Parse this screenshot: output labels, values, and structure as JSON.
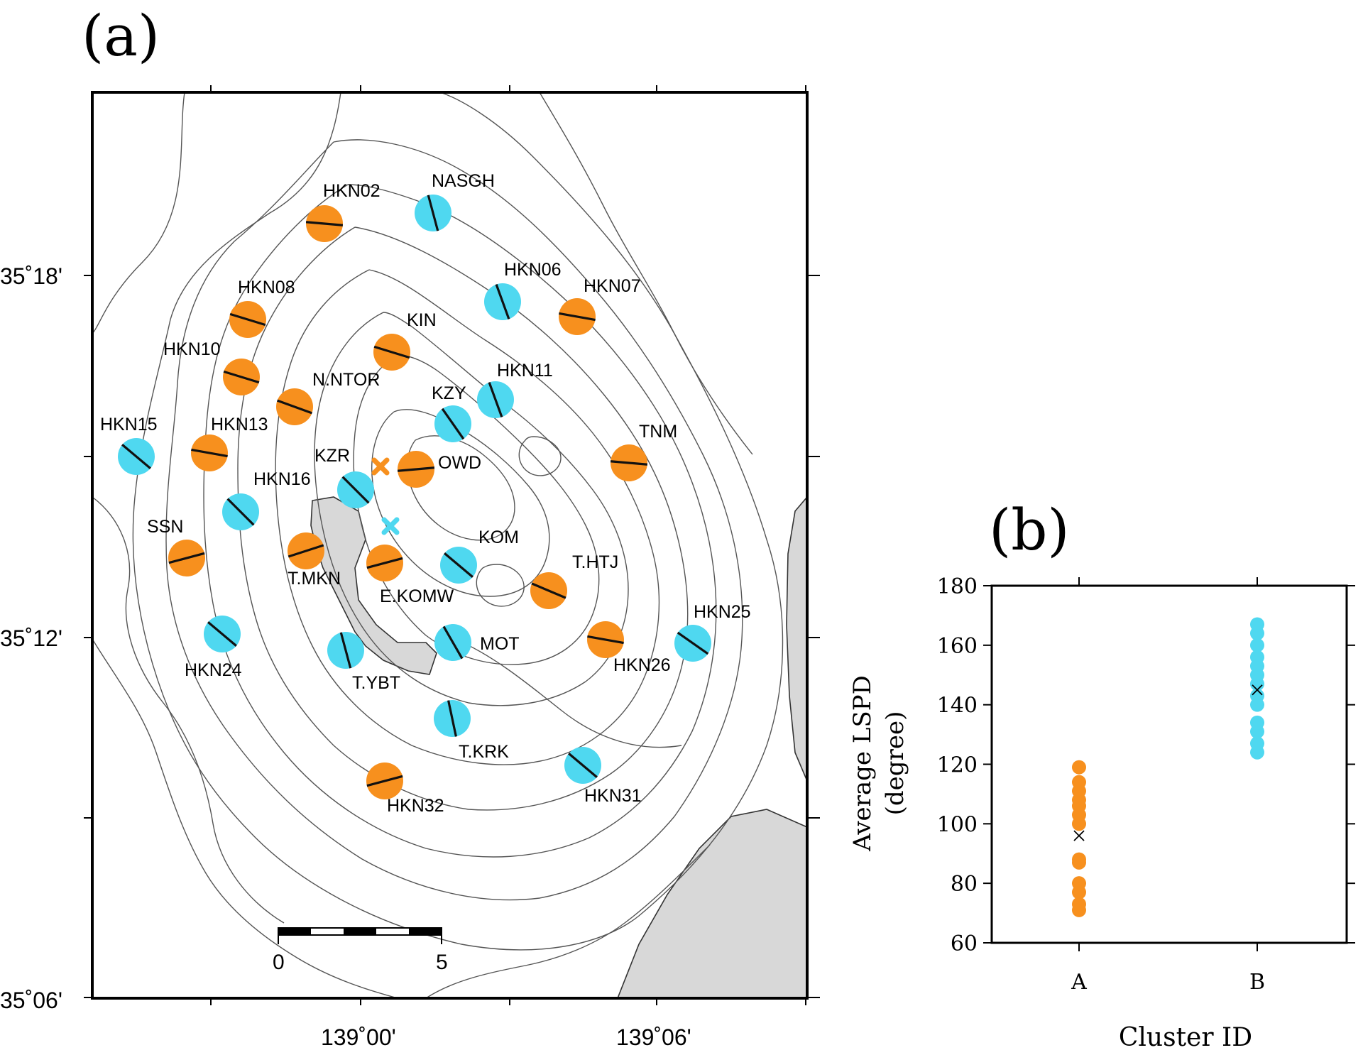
{
  "panel_a": {
    "label": "(a)",
    "lat_labels": [
      "35˚18'",
      "35˚12'",
      "35˚06'"
    ],
    "lon_labels": [
      "139˚00'",
      "139˚06'"
    ],
    "scale_bar": {
      "left": "0",
      "right": "5"
    },
    "colors": {
      "cluster_A": "#F7901E",
      "cluster_B": "#4FD8F0",
      "sea": "#d8d8d8"
    },
    "markers": [
      "orange-cross",
      "cyan-cross"
    ],
    "stations": [
      {
        "name": "HKN02",
        "cluster": "A",
        "lspd": 95
      },
      {
        "name": "NASGH",
        "cluster": "B",
        "lspd": 165
      },
      {
        "name": "HKN08",
        "cluster": "A",
        "lspd": 107
      },
      {
        "name": "HKN06",
        "cluster": "B",
        "lspd": 160
      },
      {
        "name": "HKN07",
        "cluster": "A",
        "lspd": 100
      },
      {
        "name": "KIN",
        "cluster": "A",
        "lspd": 107
      },
      {
        "name": "HKN10",
        "cluster": "A",
        "lspd": 107
      },
      {
        "name": "N.NTOR",
        "cluster": "A",
        "lspd": 110
      },
      {
        "name": "HKN11",
        "cluster": "B",
        "lspd": 160
      },
      {
        "name": "KZY",
        "cluster": "B",
        "lspd": 145
      },
      {
        "name": "HKN15",
        "cluster": "B",
        "lspd": 130
      },
      {
        "name": "HKN13",
        "cluster": "A",
        "lspd": 100
      },
      {
        "name": "TNM",
        "cluster": "A",
        "lspd": 95
      },
      {
        "name": "KZR",
        "cluster": "B",
        "lspd": 135
      },
      {
        "name": "OWD",
        "cluster": "A",
        "lspd": 85
      },
      {
        "name": "HKN16",
        "cluster": "B",
        "lspd": 135
      },
      {
        "name": "SSN",
        "cluster": "A",
        "lspd": 75
      },
      {
        "name": "T.MKN",
        "cluster": "A",
        "lspd": 72
      },
      {
        "name": "E.KOMW",
        "cluster": "A",
        "lspd": 75
      },
      {
        "name": "KOM",
        "cluster": "B",
        "lspd": 130
      },
      {
        "name": "T.HTJ",
        "cluster": "A",
        "lspd": 113
      },
      {
        "name": "HKN25",
        "cluster": "B",
        "lspd": 125
      },
      {
        "name": "HKN24",
        "cluster": "B",
        "lspd": 130
      },
      {
        "name": "T.YBT",
        "cluster": "B",
        "lspd": 165
      },
      {
        "name": "MOT",
        "cluster": "B",
        "lspd": 150
      },
      {
        "name": "HKN26",
        "cluster": "A",
        "lspd": 100
      },
      {
        "name": "T.KRK",
        "cluster": "B",
        "lspd": 168
      },
      {
        "name": "HKN31",
        "cluster": "B",
        "lspd": 130
      },
      {
        "name": "HKN32",
        "cluster": "A",
        "lspd": 75
      }
    ]
  },
  "panel_b": {
    "label": "(b)",
    "chart_data": {
      "type": "scatter",
      "xlabel": "Cluster ID",
      "ylabel": "Average LSPD",
      "ylabel_unit": "(degree)",
      "categories": [
        "A",
        "B"
      ],
      "ylim": [
        60,
        180
      ],
      "yticks": [
        60,
        80,
        100,
        120,
        140,
        160,
        180
      ],
      "series": [
        {
          "category": "A",
          "color": "#F7901E",
          "values": [
            71,
            73,
            77,
            80,
            87,
            88,
            100,
            103,
            106,
            108,
            111,
            114,
            119
          ],
          "mean": 96
        },
        {
          "category": "B",
          "color": "#4FD8F0",
          "values": [
            124,
            127,
            131,
            134,
            140,
            143,
            147,
            150,
            153,
            156,
            160,
            164,
            167
          ],
          "mean": 145
        }
      ]
    }
  }
}
